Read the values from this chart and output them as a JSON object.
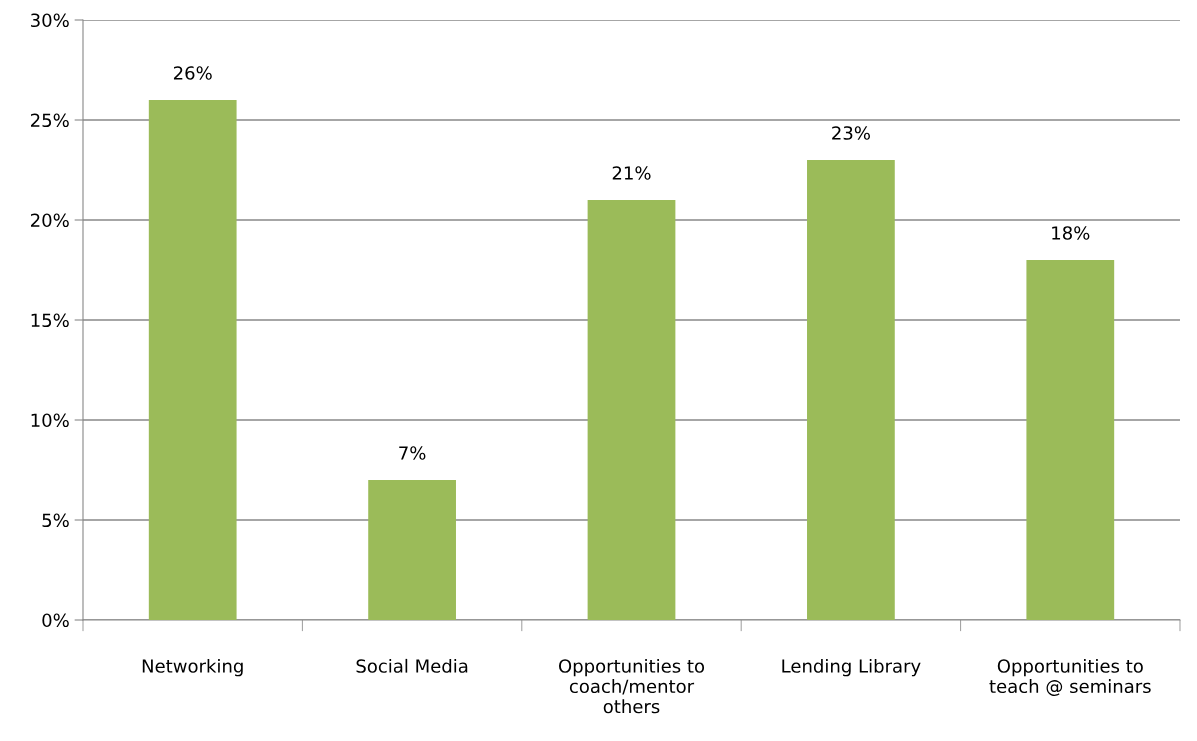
{
  "chart_data": {
    "type": "bar",
    "categories": [
      "Networking",
      "Social Media",
      "Opportunities to\ncoach/mentor\nothers",
      "Lending Library",
      "Opportunities to\nteach @ seminars"
    ],
    "values": [
      26,
      7,
      21,
      23,
      18
    ],
    "value_labels": [
      "26%",
      "7%",
      "21%",
      "23%",
      "18%"
    ],
    "color": "#9bbb59",
    "ylim": [
      0,
      30
    ],
    "yticks": [
      {
        "value": 0,
        "label": "0%"
      },
      {
        "value": 5,
        "label": "5%"
      },
      {
        "value": 10,
        "label": "10%"
      },
      {
        "value": 15,
        "label": "15%"
      },
      {
        "value": 20,
        "label": "20%"
      },
      {
        "value": 25,
        "label": "25%"
      },
      {
        "value": 30,
        "label": "30%"
      }
    ],
    "grid": "y",
    "legend": false
  }
}
